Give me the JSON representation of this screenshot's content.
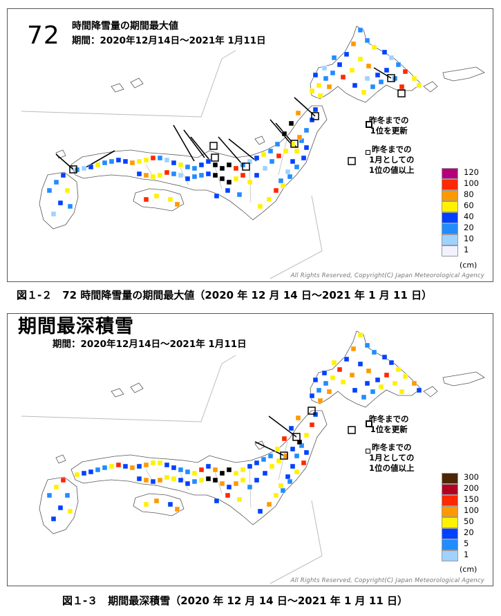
{
  "map1": {
    "big_number": "72",
    "title": "時間降雪量の期間最大値",
    "period": "期間：2020年12月14日～2021年 1月11日",
    "note_new_record": "昨冬までの\n1位を更新",
    "note_month_record": "昨冬までの\n1月としての\n1位の値以上",
    "legend_values": [
      "120",
      "100",
      "80",
      "60",
      "40",
      "20",
      "10",
      "1"
    ],
    "legend_colors": [
      "#b4007a",
      "#ff2800",
      "#ff9900",
      "#fff200",
      "#0041ff",
      "#218cff",
      "#a0d2ff",
      "#f2f2ff"
    ],
    "legend_unit": "(cm)",
    "copyright": "All Rights Reserved, Copyright(C) Japan Meteorological Agency"
  },
  "caption1": "図１-２　72 時間降雪量の期間最大値（2020 年 12 月 14 日～2021 年 1 月 11 日）",
  "map2": {
    "title": "期間最深積雪",
    "period": "期間：2020年12月14日～2021年 1月11日",
    "note_new_record": "昨冬までの\n1位を更新",
    "note_month_record": "昨冬までの\n1月としての\n1位の値以上",
    "legend_values": [
      "300",
      "200",
      "150",
      "100",
      "50",
      "20",
      "5",
      "1"
    ],
    "legend_colors": [
      "#4c2600",
      "#b40021",
      "#ff2800",
      "#ff9900",
      "#fff200",
      "#0041ff",
      "#218cff",
      "#a0d2ff"
    ],
    "legend_unit": "(cm)",
    "copyright": "All Rights Reserved, Copyright(C) Japan Meteorological Agency"
  },
  "caption2": "図１-３　期間最深積雪（2020 年 12 月 14 日～2021 年 1 月 11 日）"
}
